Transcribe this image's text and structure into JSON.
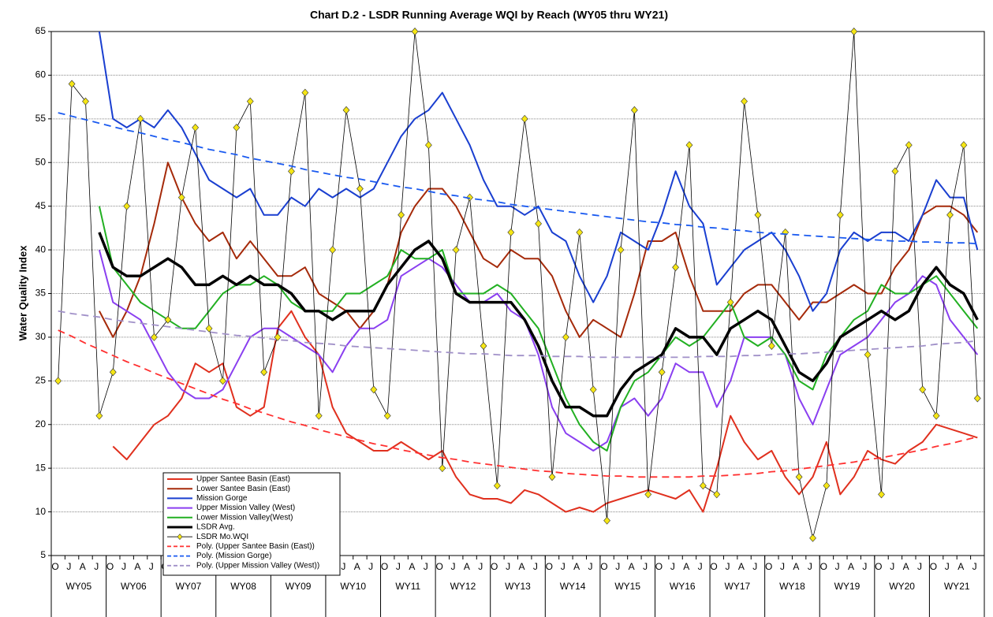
{
  "chart_data": {
    "type": "line",
    "title": "Chart D.2 - LSDR Running Average WQI by Reach (WY05 thru WY21)",
    "y_label": "Water Quality Index",
    "categories": [
      "O",
      "J",
      "A",
      "J",
      "O",
      "J",
      "A",
      "J",
      "O",
      "J",
      "A",
      "J",
      "O",
      "J",
      "A",
      "J",
      "O",
      "J",
      "A",
      "J",
      "O",
      "J",
      "A",
      "J",
      "O",
      "J",
      "A",
      "J",
      "O",
      "J",
      "A",
      "J",
      "O",
      "J",
      "A",
      "J",
      "O",
      "J",
      "A",
      "J",
      "O",
      "J",
      "A",
      "J",
      "O",
      "J",
      "A",
      "J",
      "O",
      "J",
      "A",
      "J",
      "O",
      "J",
      "A",
      "J",
      "O",
      "J",
      "A",
      "J",
      "O",
      "J",
      "A",
      "J",
      "O",
      "J",
      "A",
      "J"
    ],
    "groups": [
      "WY05",
      "WY06",
      "WY07",
      "WY08",
      "WY09",
      "WY10",
      "WY11",
      "WY12",
      "WY13",
      "WY14",
      "WY15",
      "WY16",
      "WY17",
      "WY18",
      "WY19",
      "WY20",
      "WY21"
    ],
    "ylim": [
      5,
      65
    ],
    "yticks": [
      5,
      10,
      15,
      20,
      25,
      30,
      35,
      40,
      45,
      50,
      55,
      60,
      65
    ],
    "grid": true,
    "legend": "lower left",
    "series": [
      {
        "name": "Upper Santee Basin (East)",
        "color": "#e0301e",
        "width": 2,
        "values": [
          null,
          null,
          null,
          null,
          17.5,
          16,
          18,
          20,
          21,
          23,
          27,
          26,
          27,
          22,
          21,
          22,
          31,
          33,
          30,
          28,
          22,
          19,
          18,
          17,
          17,
          18,
          17,
          16,
          17,
          14,
          12,
          11.5,
          11.5,
          11,
          12.5,
          12,
          11,
          10,
          10.5,
          10,
          11,
          11.5,
          12,
          12.5,
          12,
          11.5,
          12.5,
          10,
          15,
          21,
          18,
          16,
          17,
          14,
          12,
          14,
          18,
          12,
          14,
          17,
          16,
          15.5,
          17,
          18,
          20,
          19.5,
          19,
          18.5
        ]
      },
      {
        "name": "Lower Santee Basin (East)",
        "color": "#a52a0a",
        "width": 2,
        "values": [
          null,
          null,
          null,
          33,
          30,
          33,
          37,
          43,
          50,
          46,
          43,
          41,
          42,
          39,
          41,
          39,
          37,
          37,
          38,
          35,
          34,
          33,
          31,
          33,
          36,
          42,
          45,
          47,
          47,
          45,
          42,
          39,
          38,
          40,
          39,
          39,
          37,
          33,
          30,
          32,
          31,
          30,
          35,
          41,
          41,
          42,
          37,
          33,
          33,
          33,
          35,
          36,
          36,
          34,
          32,
          34,
          34,
          35,
          36,
          35,
          35,
          38,
          40,
          44,
          45,
          45,
          44,
          42
        ]
      },
      {
        "name": "Mission Gorge",
        "color": "#1a3fd0",
        "width": 2,
        "values": [
          null,
          null,
          null,
          65,
          55,
          54,
          55,
          54,
          56,
          54,
          51,
          48,
          47,
          46,
          47,
          44,
          44,
          46,
          45,
          47,
          46,
          47,
          46,
          47,
          50,
          53,
          55,
          56,
          58,
          55,
          52,
          48,
          45,
          45,
          44,
          45,
          42,
          41,
          37,
          34,
          37,
          42,
          41,
          40,
          44,
          49,
          45,
          43,
          36,
          38,
          40,
          41,
          42,
          40,
          37,
          33,
          35,
          40,
          42,
          41,
          42,
          42,
          41,
          44,
          48,
          46,
          46,
          40
        ]
      },
      {
        "name": "Upper Mission Valley (West)",
        "color": "#8a3ff0",
        "width": 2,
        "values": [
          null,
          null,
          null,
          40,
          34,
          33,
          32,
          29,
          26,
          24,
          23,
          23,
          24,
          27,
          30,
          31,
          31,
          30,
          29,
          28,
          26,
          29,
          31,
          31,
          32,
          37,
          38,
          39,
          38,
          36,
          34,
          34,
          35,
          33,
          32,
          28,
          22,
          19,
          18,
          17,
          18,
          22,
          23,
          21,
          23,
          27,
          26,
          26,
          22,
          25,
          30,
          30,
          30,
          28,
          23,
          20,
          24,
          28,
          29,
          30,
          32,
          34,
          35,
          37,
          36,
          32,
          30,
          28
        ]
      },
      {
        "name": "Lower Mission Valley(West)",
        "color": "#22b022",
        "width": 2,
        "values": [
          null,
          null,
          null,
          45,
          38,
          36,
          34,
          33,
          32,
          31,
          31,
          33,
          35,
          36,
          36,
          37,
          36,
          34,
          33,
          33,
          33,
          35,
          35,
          36,
          37,
          40,
          39,
          39,
          40,
          35,
          35,
          35,
          36,
          35,
          33,
          31,
          27,
          23,
          20,
          18,
          17,
          22,
          25,
          26,
          28,
          30,
          29,
          30,
          32,
          34,
          30,
          29,
          30,
          28,
          25,
          24,
          28,
          30,
          32,
          33,
          36,
          35,
          35,
          36,
          37,
          35,
          33,
          31
        ]
      },
      {
        "name": "LSDR Avg.",
        "color": "#000000",
        "width": 3.5,
        "values": [
          null,
          null,
          null,
          42,
          38,
          37,
          37,
          38,
          39,
          38,
          36,
          36,
          37,
          36,
          37,
          36,
          36,
          35,
          33,
          33,
          32,
          33,
          33,
          33,
          36,
          38,
          40,
          41,
          39,
          35,
          34,
          34,
          34,
          34,
          32,
          29,
          25,
          22,
          22,
          21,
          21,
          24,
          26,
          27,
          28,
          31,
          30,
          30,
          28,
          31,
          32,
          33,
          32,
          29,
          26,
          25,
          27,
          30,
          31,
          32,
          33,
          32,
          33,
          36,
          38,
          36,
          35,
          32
        ]
      },
      {
        "name": "LSDR Mo.WQI",
        "color": "#000000",
        "width": 0.8,
        "marker": "#f5e615",
        "values": [
          25,
          59,
          57,
          21,
          26,
          45,
          55,
          30,
          32,
          46,
          54,
          31,
          25,
          54,
          57,
          26,
          30,
          49,
          58,
          21,
          40,
          56,
          47,
          24,
          21,
          44,
          65,
          52,
          15,
          40,
          46,
          29,
          13,
          42,
          55,
          43,
          14,
          30,
          42,
          24,
          9,
          40,
          56,
          12,
          26,
          38,
          52,
          13,
          12,
          34,
          57,
          44,
          29,
          42,
          14,
          7,
          13,
          44,
          65,
          28,
          12,
          49,
          52,
          24,
          21,
          44,
          52,
          23
        ]
      },
      {
        "name": "Poly. (Upper Santee Basin (East))",
        "color": "#ff3030",
        "width": 1.8,
        "dash": "9 6",
        "values": [
          30.8,
          30.1,
          29.3,
          28.6,
          27.9,
          27.2,
          26.6,
          25.9,
          25.3,
          24.7,
          24.1,
          23.5,
          22.9,
          22.4,
          21.8,
          21.3,
          20.8,
          20.3,
          19.9,
          19.4,
          19.0,
          18.6,
          18.2,
          17.8,
          17.5,
          17.1,
          16.8,
          16.5,
          16.2,
          16.0,
          15.7,
          15.5,
          15.3,
          15.1,
          14.9,
          14.7,
          14.6,
          14.4,
          14.3,
          14.2,
          14.1,
          14.1,
          14.0,
          14.0,
          14.0,
          14.0,
          14.0,
          14.1,
          14.1,
          14.2,
          14.3,
          14.4,
          14.6,
          14.7,
          14.9,
          15.1,
          15.3,
          15.5,
          15.7,
          16.0,
          16.2,
          16.5,
          16.8,
          17.1,
          17.5,
          17.8,
          18.2,
          18.6
        ]
      },
      {
        "name": "Poly. (Mission Gorge)",
        "color": "#1a5af0",
        "width": 1.8,
        "dash": "9 6",
        "values": [
          55.7,
          55.3,
          54.9,
          54.5,
          54.1,
          53.7,
          53.4,
          53.0,
          52.6,
          52.3,
          51.9,
          51.5,
          51.2,
          50.9,
          50.5,
          50.2,
          49.9,
          49.6,
          49.2,
          48.9,
          48.6,
          48.3,
          48.1,
          47.8,
          47.5,
          47.2,
          47.0,
          46.7,
          46.4,
          46.2,
          45.9,
          45.7,
          45.5,
          45.2,
          45.0,
          44.8,
          44.6,
          44.4,
          44.2,
          44.0,
          43.8,
          43.6,
          43.4,
          43.2,
          43.1,
          42.9,
          42.8,
          42.6,
          42.5,
          42.3,
          42.2,
          42.0,
          41.9,
          41.8,
          41.7,
          41.6,
          41.5,
          41.4,
          41.3,
          41.2,
          41.1,
          41.0,
          41.0,
          40.9,
          40.9,
          40.8,
          40.8,
          40.7
        ]
      },
      {
        "name": "Poly. (Upper Mission Valley (West))",
        "color": "#a090c8",
        "width": 1.8,
        "dash": "9 6",
        "values": [
          33.0,
          32.7,
          32.5,
          32.3,
          32.0,
          31.8,
          31.6,
          31.4,
          31.2,
          31.0,
          30.8,
          30.6,
          30.4,
          30.2,
          30.1,
          29.9,
          29.7,
          29.6,
          29.4,
          29.3,
          29.2,
          29.0,
          28.9,
          28.8,
          28.7,
          28.6,
          28.5,
          28.4,
          28.3,
          28.2,
          28.1,
          28.1,
          28.0,
          27.9,
          27.9,
          27.9,
          27.8,
          27.8,
          27.8,
          27.7,
          27.7,
          27.7,
          27.7,
          27.7,
          27.7,
          27.7,
          27.7,
          27.8,
          27.8,
          27.8,
          27.9,
          27.9,
          28.0,
          28.1,
          28.1,
          28.2,
          28.3,
          28.4,
          28.5,
          28.6,
          28.7,
          28.8,
          28.9,
          29.0,
          29.2,
          29.3,
          29.4,
          29.6
        ]
      }
    ]
  }
}
